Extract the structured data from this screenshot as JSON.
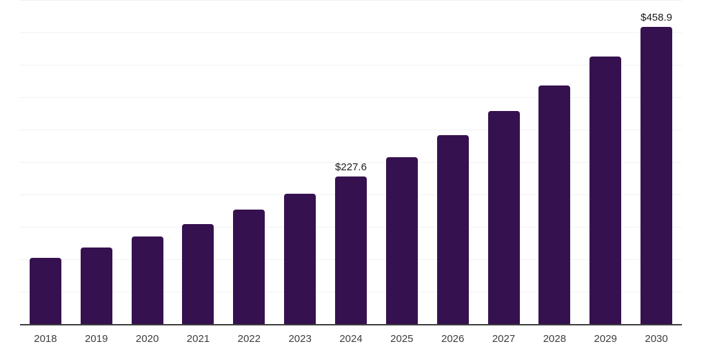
{
  "chart_data": {
    "type": "bar",
    "title": "",
    "categories": [
      "2018",
      "2019",
      "2020",
      "2021",
      "2022",
      "2023",
      "2024",
      "2025",
      "2026",
      "2027",
      "2028",
      "2029",
      "2030"
    ],
    "values": [
      102.2,
      118.0,
      134.9,
      154.2,
      176.4,
      201.2,
      227.6,
      257.4,
      291.3,
      328.6,
      368.1,
      412.4,
      458.9
    ],
    "data_labels": [
      "",
      "",
      "",
      "",
      "",
      "",
      "$227.6",
      "",
      "",
      "",
      "",
      "",
      "$458.9"
    ],
    "xlabel": "",
    "ylabel": "",
    "ylim": [
      0,
      500
    ],
    "grid_step": 50,
    "grid": "horizontal-only",
    "legend": "none",
    "colors": {
      "bar": "#36114F",
      "grid": "#f2f2f2",
      "axis": "#3d3d3d",
      "tick_label": "#3d3d3d",
      "data_label": "#1a1a1a",
      "background": "#ffffff"
    }
  }
}
